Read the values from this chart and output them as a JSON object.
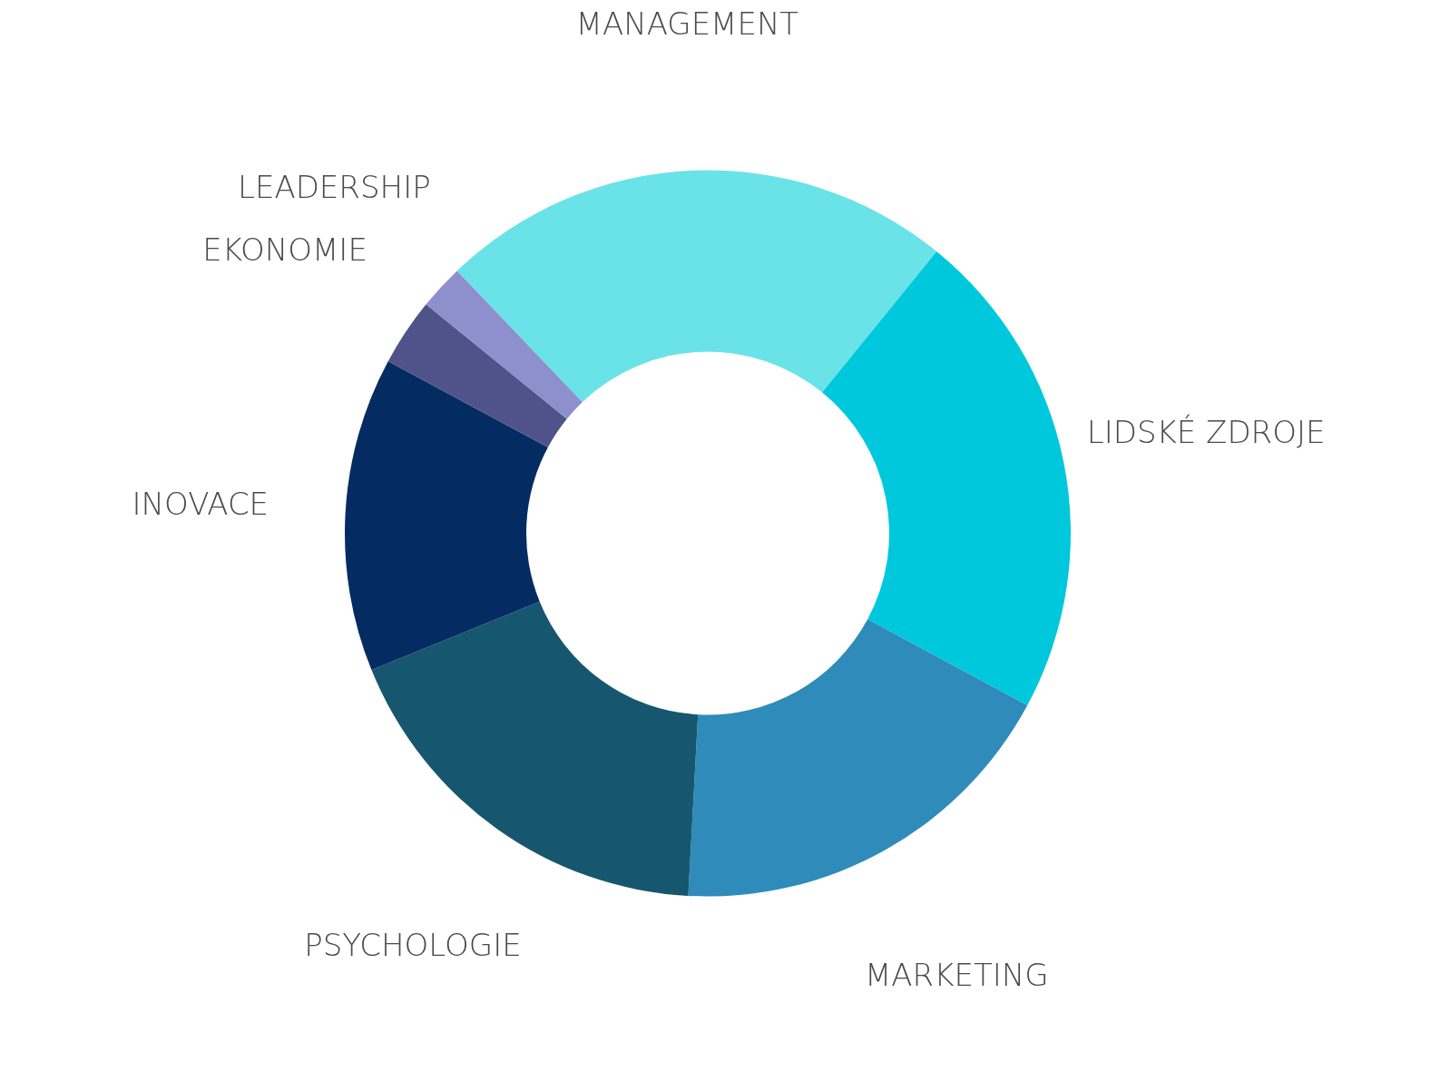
{
  "chart_data": {
    "type": "donut",
    "categories": [
      "MANAGEMENT",
      "LIDSKÉ ZDROJE",
      "MARKETING",
      "PSYCHOLOGIE",
      "INOVACE",
      "EKONOMIE",
      "LEADERSHIP"
    ],
    "values": [
      23,
      22,
      18,
      18,
      14,
      3,
      2
    ],
    "colors": [
      "#6ae3e8",
      "#00c8dc",
      "#2e8bba",
      "#17566f",
      "#052b63",
      "#4f5389",
      "#8d90cc"
    ],
    "legend": false
  }
}
